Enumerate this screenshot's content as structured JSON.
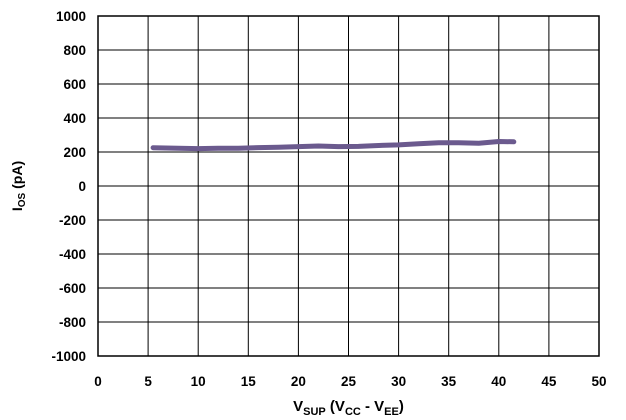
{
  "chart_data": {
    "type": "line",
    "xlabel": "V_SUP (V_CC - V_EE)",
    "xlabel_parts": {
      "main": "V",
      "main_sub": "SUP",
      "paren_open": " (V",
      "cc_sub": "CC",
      "minus": " - V",
      "ee_sub": "EE",
      "paren_close": ")"
    },
    "ylabel": "I_OS (pA)",
    "ylabel_parts": {
      "main": "I",
      "main_sub": "OS",
      "unit": " (pA)"
    },
    "xlim": [
      0,
      50
    ],
    "ylim": [
      -1000,
      1000
    ],
    "x_ticks": [
      0,
      5,
      10,
      15,
      20,
      25,
      30,
      35,
      40,
      45,
      50
    ],
    "y_ticks": [
      1000,
      800,
      600,
      400,
      200,
      0,
      -200,
      -400,
      -600,
      -800,
      -1000
    ],
    "grid": true,
    "series": [
      {
        "color": "#6B5A8E",
        "x": [
          5.5,
          8,
          10,
          12,
          14,
          16,
          18,
          20,
          22,
          24,
          26,
          28,
          30,
          32,
          34,
          36,
          38,
          40,
          41.5
        ],
        "y": [
          225,
          222,
          220,
          222,
          222,
          226,
          228,
          232,
          235,
          232,
          233,
          238,
          242,
          248,
          255,
          255,
          252,
          262,
          260
        ]
      }
    ]
  }
}
